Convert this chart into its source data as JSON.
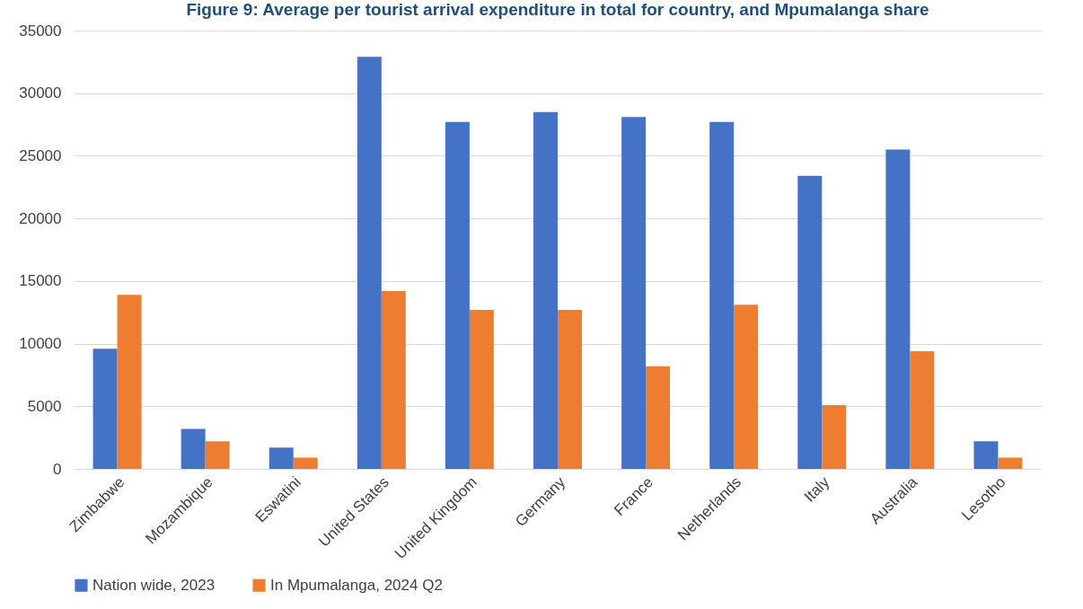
{
  "chart_data": {
    "type": "bar",
    "title": "Figure 9: Average per tourist arrival expenditure in total for country, and Mpumalanga share",
    "categories": [
      "Zimbabwe",
      "Mozambique",
      "Eswatini",
      "United States",
      "United Kingdom",
      "Germany",
      "France",
      "Netherlands",
      "Italy",
      "Australia",
      "Lesotho"
    ],
    "series": [
      {
        "name": "Nation wide, 2023",
        "color": "#4472c4",
        "values": [
          9600,
          3200,
          1700,
          32900,
          27700,
          28500,
          28100,
          27700,
          23400,
          25500,
          2200
        ]
      },
      {
        "name": "In Mpumalanga, 2024 Q2",
        "color": "#ed7d31",
        "values": [
          13900,
          2200,
          900,
          14200,
          12700,
          12700,
          8200,
          13100,
          5100,
          9400,
          900
        ]
      }
    ],
    "ylim": [
      0,
      35000
    ],
    "yticks": [
      0,
      5000,
      10000,
      15000,
      20000,
      25000,
      30000,
      35000
    ],
    "grid": "y",
    "legend": "bottom"
  }
}
